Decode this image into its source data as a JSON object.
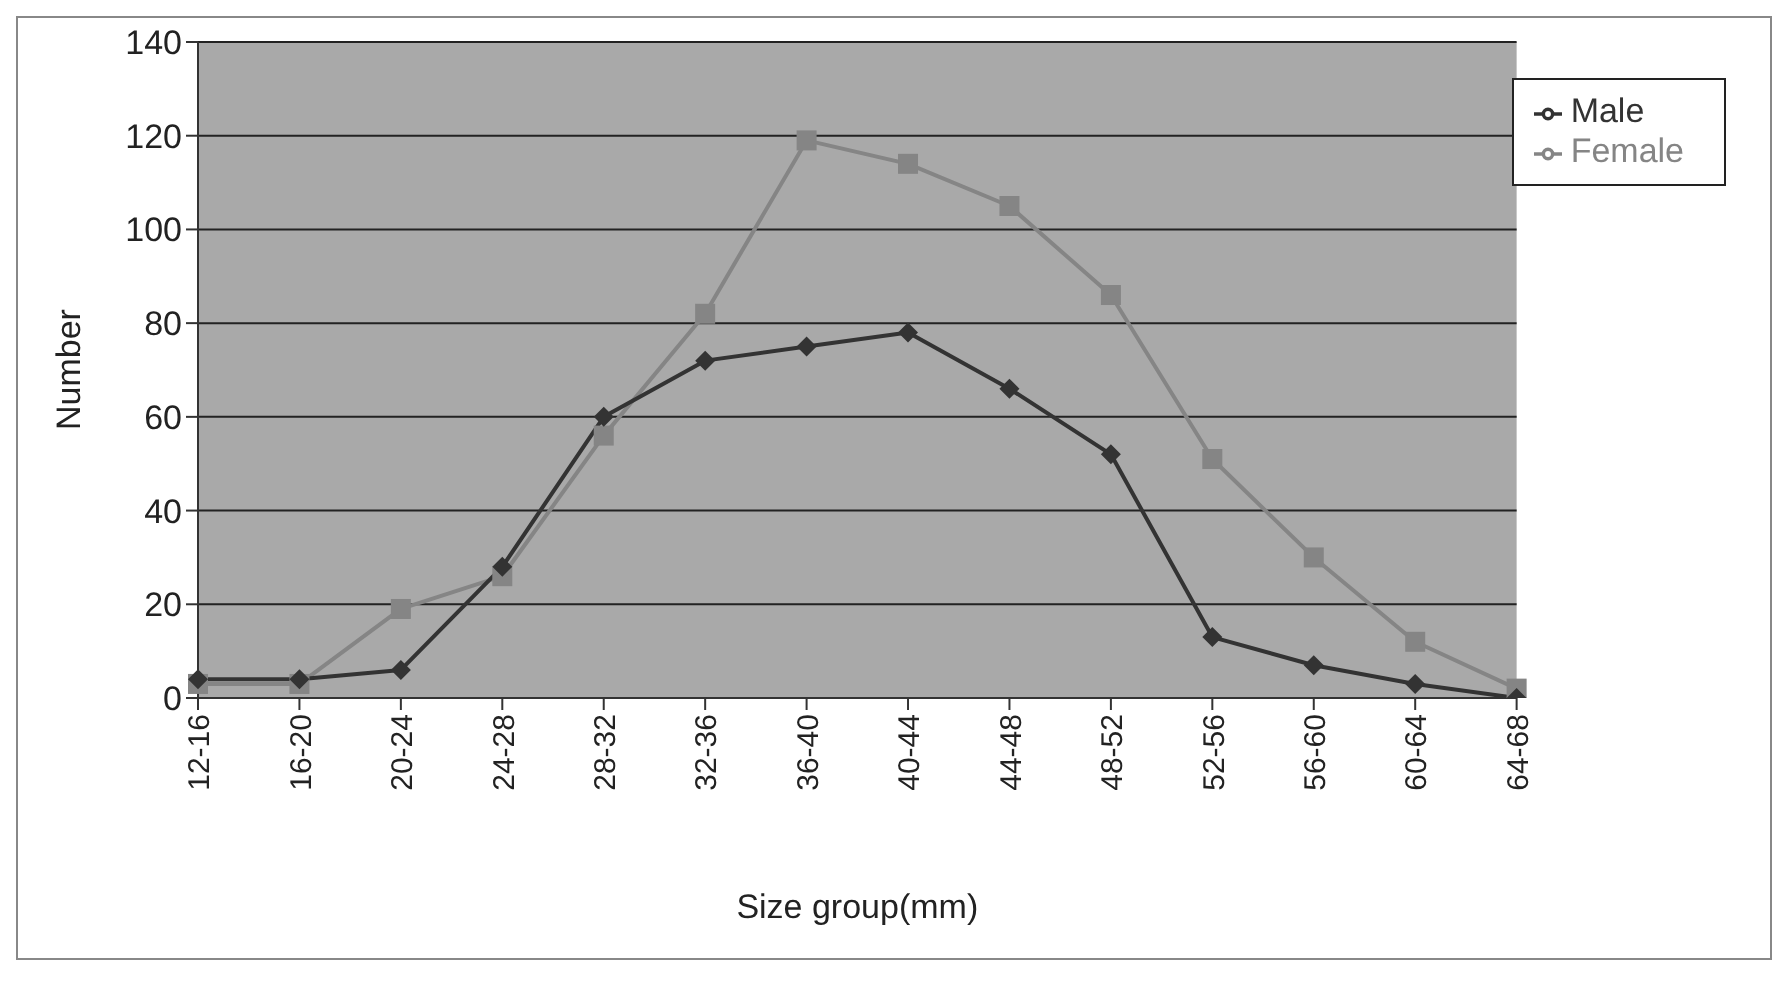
{
  "chart_data": {
    "type": "line",
    "xlabel": "Size group(mm)",
    "ylabel": "Number",
    "categories": [
      "12-16",
      "16-20",
      "20-24",
      "24-28",
      "28-32",
      "32-36",
      "36-40",
      "40-44",
      "44-48",
      "48-52",
      "52-56",
      "56-60",
      "60-64",
      "64-68"
    ],
    "series": [
      {
        "name": "Male",
        "color": "#333333",
        "marker": "diamond",
        "values": [
          4,
          4,
          6,
          28,
          60,
          72,
          75,
          78,
          66,
          52,
          13,
          7,
          3,
          0
        ]
      },
      {
        "name": "Female",
        "color": "#858585",
        "marker": "square",
        "values": [
          3,
          3,
          19,
          26,
          56,
          82,
          119,
          114,
          105,
          86,
          51,
          30,
          12,
          2
        ]
      }
    ],
    "ylim": [
      0,
      140
    ],
    "yticks": [
      0,
      20,
      40,
      60,
      80,
      100,
      120,
      140
    ],
    "grid": "y",
    "legend": "top right"
  }
}
